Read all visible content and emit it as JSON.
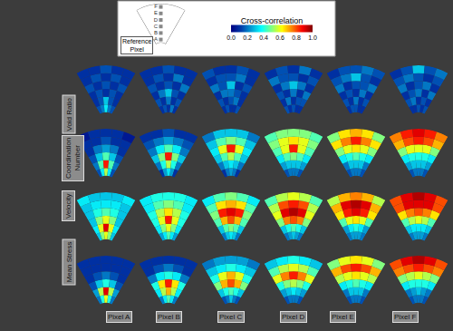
{
  "chart_data": {
    "type": "heatmap",
    "colorbar": {
      "title": "Cross-correlation",
      "range": [
        0,
        1
      ],
      "ticks": [
        {
          "value": 0,
          "label": "0.0"
        },
        {
          "value": 0.2,
          "label": "0.2"
        },
        {
          "value": 0.4,
          "label": "0.4"
        },
        {
          "value": 0.6,
          "label": "0.6"
        },
        {
          "value": 0.8,
          "label": "0.8"
        },
        {
          "value": 1,
          "label": "1.0"
        }
      ]
    },
    "reference_label": "Reference Pixel",
    "reference_pixels": [
      "A",
      "B",
      "C",
      "D",
      "E",
      "F"
    ],
    "columns": [
      "Pixel A",
      "Pixel B",
      "Pixel C",
      "Pixel D",
      "Pixel E",
      "Pixel F"
    ],
    "rows": [
      {
        "label": "Void Ratio",
        "cells": [
          [
            [
              0.15,
              0.2,
              0.35,
              0.2,
              0.15
            ],
            [
              0.1,
              0.15,
              0.3,
              0.15,
              0.1
            ],
            [
              0.1,
              0.15,
              0.1,
              0.15,
              0.1
            ],
            [
              0.15,
              0.1,
              0.15,
              0.1,
              0.15
            ],
            [
              0.1,
              0.15,
              0.1,
              0.15,
              0.1
            ],
            [
              0.1,
              0.1,
              0.15,
              0.1,
              0.1
            ]
          ],
          [
            [
              0.1,
              0.15,
              0.1,
              0.2,
              0.1
            ],
            [
              0.15,
              0.1,
              0.2,
              0.1,
              0.15
            ],
            [
              0.1,
              0.2,
              0.3,
              0.15,
              0.1
            ],
            [
              0.15,
              0.1,
              0.15,
              0.1,
              0.2
            ],
            [
              0.1,
              0.15,
              0.1,
              0.2,
              0.1
            ],
            [
              0.1,
              0.1,
              0.15,
              0.1,
              0.1
            ]
          ],
          [
            [
              0.1,
              0.15,
              0.1,
              0.1,
              0.15
            ],
            [
              0.15,
              0.1,
              0.15,
              0.2,
              0.1
            ],
            [
              0.1,
              0.2,
              0.2,
              0.15,
              0.1
            ],
            [
              0.2,
              0.15,
              0.3,
              0.1,
              0.15
            ],
            [
              0.1,
              0.15,
              0.15,
              0.2,
              0.1
            ],
            [
              0.15,
              0.1,
              0.1,
              0.15,
              0.1
            ]
          ],
          [
            [
              0.15,
              0.1,
              0.15,
              0.1,
              0.1
            ],
            [
              0.1,
              0.2,
              0.1,
              0.15,
              0.15
            ],
            [
              0.15,
              0.1,
              0.2,
              0.1,
              0.2
            ],
            [
              0.1,
              0.2,
              0.3,
              0.2,
              0.1
            ],
            [
              0.2,
              0.15,
              0.15,
              0.1,
              0.15
            ],
            [
              0.1,
              0.15,
              0.1,
              0.2,
              0.1
            ]
          ],
          [
            [
              0.1,
              0.15,
              0.15,
              0.1,
              0.1
            ],
            [
              0.15,
              0.1,
              0.2,
              0.1,
              0.15
            ],
            [
              0.1,
              0.15,
              0.1,
              0.2,
              0.1
            ],
            [
              0.2,
              0.1,
              0.15,
              0.15,
              0.2
            ],
            [
              0.15,
              0.2,
              0.3,
              0.15,
              0.1
            ],
            [
              0.1,
              0.15,
              0.15,
              0.2,
              0.15
            ]
          ],
          [
            [
              0.1,
              0.1,
              0.15,
              0.1,
              0.15
            ],
            [
              0.15,
              0.2,
              0.1,
              0.15,
              0.1
            ],
            [
              0.1,
              0.15,
              0.2,
              0.1,
              0.2
            ],
            [
              0.2,
              0.1,
              0.15,
              0.2,
              0.1
            ],
            [
              0.15,
              0.2,
              0.15,
              0.1,
              0.15
            ],
            [
              0.1,
              0.15,
              0.3,
              0.15,
              0.2
            ]
          ]
        ]
      },
      {
        "label": "Coordination Number",
        "cells": [
          [
            [
              0.15,
              0.35,
              0.55,
              0.35,
              0.15
            ],
            [
              0.2,
              0.45,
              0.85,
              0.45,
              0.2
            ],
            [
              0.15,
              0.3,
              0.45,
              0.3,
              0.15
            ],
            [
              0.1,
              0.2,
              0.25,
              0.2,
              0.1
            ],
            [
              0.1,
              0.1,
              0.15,
              0.1,
              0.1
            ],
            [
              0.05,
              0.1,
              0.1,
              0.1,
              0.05
            ]
          ],
          [
            [
              0.1,
              0.25,
              0.35,
              0.25,
              0.1
            ],
            [
              0.2,
              0.4,
              0.55,
              0.4,
              0.2
            ],
            [
              0.3,
              0.5,
              0.85,
              0.5,
              0.3
            ],
            [
              0.2,
              0.35,
              0.45,
              0.35,
              0.2
            ],
            [
              0.15,
              0.2,
              0.25,
              0.2,
              0.15
            ],
            [
              0.1,
              0.1,
              0.15,
              0.1,
              0.1
            ]
          ],
          [
            [
              0.1,
              0.2,
              0.25,
              0.2,
              0.1
            ],
            [
              0.2,
              0.3,
              0.35,
              0.3,
              0.2
            ],
            [
              0.3,
              0.45,
              0.55,
              0.45,
              0.3
            ],
            [
              0.35,
              0.6,
              0.85,
              0.6,
              0.35
            ],
            [
              0.3,
              0.45,
              0.5,
              0.45,
              0.3
            ],
            [
              0.2,
              0.3,
              0.3,
              0.3,
              0.2
            ]
          ],
          [
            [
              0.15,
              0.2,
              0.2,
              0.2,
              0.15
            ],
            [
              0.25,
              0.3,
              0.3,
              0.3,
              0.25
            ],
            [
              0.35,
              0.45,
              0.5,
              0.45,
              0.35
            ],
            [
              0.45,
              0.6,
              0.85,
              0.6,
              0.45
            ],
            [
              0.5,
              0.6,
              0.65,
              0.6,
              0.5
            ],
            [
              0.45,
              0.5,
              0.5,
              0.5,
              0.45
            ]
          ],
          [
            [
              0.15,
              0.2,
              0.2,
              0.2,
              0.15
            ],
            [
              0.2,
              0.3,
              0.3,
              0.3,
              0.2
            ],
            [
              0.35,
              0.4,
              0.45,
              0.4,
              0.35
            ],
            [
              0.5,
              0.6,
              0.65,
              0.6,
              0.5
            ],
            [
              0.65,
              0.75,
              0.85,
              0.75,
              0.65
            ],
            [
              0.5,
              0.65,
              0.7,
              0.65,
              0.5
            ]
          ],
          [
            [
              0.15,
              0.2,
              0.2,
              0.2,
              0.15
            ],
            [
              0.25,
              0.3,
              0.3,
              0.3,
              0.25
            ],
            [
              0.35,
              0.4,
              0.4,
              0.4,
              0.35
            ],
            [
              0.5,
              0.6,
              0.6,
              0.6,
              0.5
            ],
            [
              0.7,
              0.8,
              0.85,
              0.8,
              0.7
            ],
            [
              0.75,
              0.85,
              0.9,
              0.85,
              0.75
            ]
          ]
        ]
      },
      {
        "label": "Velocity",
        "cells": [
          [
            [
              0.3,
              0.5,
              0.6,
              0.5,
              0.3
            ],
            [
              0.35,
              0.6,
              0.9,
              0.6,
              0.35
            ],
            [
              0.3,
              0.5,
              0.6,
              0.5,
              0.3
            ],
            [
              0.3,
              0.4,
              0.45,
              0.4,
              0.3
            ],
            [
              0.3,
              0.35,
              0.35,
              0.35,
              0.3
            ],
            [
              0.35,
              0.3,
              0.3,
              0.3,
              0.35
            ]
          ],
          [
            [
              0.25,
              0.35,
              0.45,
              0.35,
              0.25
            ],
            [
              0.35,
              0.5,
              0.6,
              0.5,
              0.35
            ],
            [
              0.4,
              0.6,
              0.85,
              0.6,
              0.4
            ],
            [
              0.4,
              0.55,
              0.65,
              0.55,
              0.4
            ],
            [
              0.35,
              0.45,
              0.5,
              0.45,
              0.35
            ],
            [
              0.35,
              0.4,
              0.4,
              0.4,
              0.35
            ]
          ],
          [
            [
              0.2,
              0.3,
              0.35,
              0.3,
              0.2
            ],
            [
              0.3,
              0.45,
              0.5,
              0.45,
              0.3
            ],
            [
              0.45,
              0.7,
              0.8,
              0.7,
              0.45
            ],
            [
              0.5,
              0.85,
              0.9,
              0.85,
              0.5
            ],
            [
              0.45,
              0.65,
              0.7,
              0.65,
              0.45
            ],
            [
              0.35,
              0.45,
              0.5,
              0.45,
              0.35
            ]
          ],
          [
            [
              0.2,
              0.25,
              0.3,
              0.25,
              0.2
            ],
            [
              0.3,
              0.4,
              0.45,
              0.4,
              0.3
            ],
            [
              0.5,
              0.75,
              0.8,
              0.75,
              0.5
            ],
            [
              0.6,
              0.9,
              0.95,
              0.9,
              0.6
            ],
            [
              0.55,
              0.8,
              0.85,
              0.8,
              0.55
            ],
            [
              0.45,
              0.55,
              0.6,
              0.55,
              0.45
            ]
          ],
          [
            [
              0.2,
              0.25,
              0.25,
              0.25,
              0.2
            ],
            [
              0.25,
              0.35,
              0.4,
              0.35,
              0.25
            ],
            [
              0.45,
              0.6,
              0.65,
              0.6,
              0.45
            ],
            [
              0.65,
              0.85,
              0.9,
              0.85,
              0.65
            ],
            [
              0.7,
              0.9,
              0.95,
              0.9,
              0.7
            ],
            [
              0.55,
              0.7,
              0.75,
              0.7,
              0.55
            ]
          ],
          [
            [
              0.2,
              0.25,
              0.25,
              0.25,
              0.2
            ],
            [
              0.3,
              0.35,
              0.35,
              0.35,
              0.3
            ],
            [
              0.45,
              0.55,
              0.6,
              0.55,
              0.45
            ],
            [
              0.65,
              0.75,
              0.8,
              0.75,
              0.65
            ],
            [
              0.8,
              0.9,
              0.9,
              0.9,
              0.8
            ],
            [
              0.8,
              0.9,
              0.95,
              0.9,
              0.8
            ]
          ]
        ]
      },
      {
        "label": "Mean Stress",
        "cells": [
          [
            [
              0.2,
              0.4,
              0.6,
              0.4,
              0.2
            ],
            [
              0.25,
              0.55,
              0.9,
              0.55,
              0.25
            ],
            [
              0.15,
              0.3,
              0.4,
              0.3,
              0.15
            ],
            [
              0.1,
              0.15,
              0.2,
              0.15,
              0.1
            ],
            [
              0.1,
              0.1,
              0.1,
              0.1,
              0.1
            ],
            [
              0.1,
              0.1,
              0.1,
              0.1,
              0.1
            ]
          ],
          [
            [
              0.2,
              0.35,
              0.45,
              0.35,
              0.2
            ],
            [
              0.35,
              0.55,
              0.7,
              0.55,
              0.35
            ],
            [
              0.4,
              0.65,
              0.85,
              0.65,
              0.4
            ],
            [
              0.2,
              0.35,
              0.4,
              0.35,
              0.2
            ],
            [
              0.1,
              0.15,
              0.2,
              0.15,
              0.1
            ],
            [
              0.1,
              0.1,
              0.1,
              0.1,
              0.1
            ]
          ],
          [
            [
              0.15,
              0.2,
              0.3,
              0.2,
              0.15
            ],
            [
              0.3,
              0.4,
              0.45,
              0.4,
              0.3
            ],
            [
              0.5,
              0.7,
              0.8,
              0.7,
              0.5
            ],
            [
              0.4,
              0.6,
              0.7,
              0.6,
              0.4
            ],
            [
              0.3,
              0.35,
              0.4,
              0.35,
              0.3
            ],
            [
              0.2,
              0.25,
              0.25,
              0.25,
              0.2
            ]
          ],
          [
            [
              0.15,
              0.2,
              0.2,
              0.2,
              0.15
            ],
            [
              0.25,
              0.3,
              0.35,
              0.3,
              0.25
            ],
            [
              0.4,
              0.5,
              0.55,
              0.5,
              0.4
            ],
            [
              0.6,
              0.75,
              0.85,
              0.75,
              0.6
            ],
            [
              0.45,
              0.55,
              0.6,
              0.55,
              0.45
            ],
            [
              0.3,
              0.35,
              0.4,
              0.35,
              0.3
            ]
          ],
          [
            [
              0.15,
              0.2,
              0.2,
              0.2,
              0.15
            ],
            [
              0.2,
              0.3,
              0.3,
              0.3,
              0.2
            ],
            [
              0.35,
              0.4,
              0.45,
              0.4,
              0.35
            ],
            [
              0.55,
              0.6,
              0.65,
              0.6,
              0.55
            ],
            [
              0.7,
              0.8,
              0.85,
              0.8,
              0.7
            ],
            [
              0.5,
              0.6,
              0.65,
              0.6,
              0.5
            ]
          ],
          [
            [
              0.15,
              0.2,
              0.2,
              0.2,
              0.15
            ],
            [
              0.2,
              0.25,
              0.3,
              0.25,
              0.2
            ],
            [
              0.35,
              0.4,
              0.4,
              0.4,
              0.35
            ],
            [
              0.5,
              0.55,
              0.6,
              0.55,
              0.5
            ],
            [
              0.75,
              0.8,
              0.85,
              0.8,
              0.75
            ],
            [
              0.8,
              0.9,
              0.95,
              0.9,
              0.8
            ]
          ]
        ]
      }
    ]
  }
}
